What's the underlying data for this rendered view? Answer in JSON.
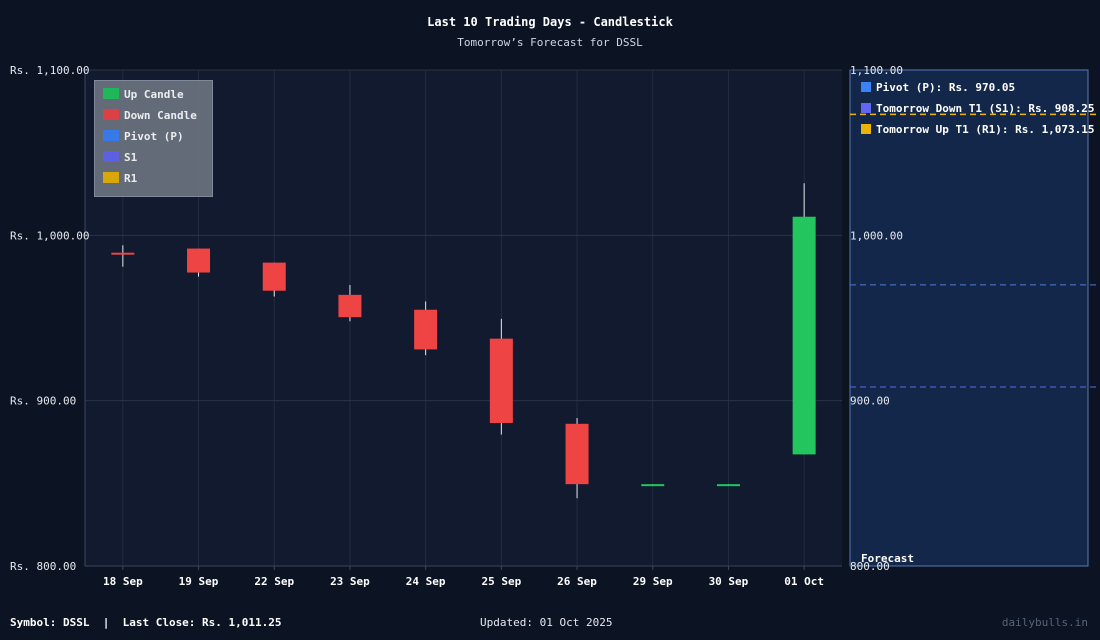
{
  "title": "Last 10 Trading Days - Candlestick",
  "subtitle": "Tomorrow’s Forecast for DSSL",
  "footer": {
    "symbol": "Symbol: DSSL  |  Last Close: Rs. 1,011.25",
    "updated": "Updated: 01 Oct 2025",
    "brand": "dailybulls.in"
  },
  "legend": [
    {
      "label": "Up Candle",
      "color": "#22c55e"
    },
    {
      "label": "Down Candle",
      "color": "#ef4444"
    },
    {
      "label": "Pivot (P)",
      "color": "#3b82f6"
    },
    {
      "label": "S1",
      "color": "#6366f1"
    },
    {
      "label": "R1",
      "color": "#eab308"
    }
  ],
  "forecast_panel": {
    "label": "Forecast",
    "items": [
      {
        "label": "Pivot (P): Rs. 970.05",
        "color": "#3b82f6"
      },
      {
        "label": "Tomorrow Down T1 (S1): Rs. 908.25",
        "color": "#6366f1"
      },
      {
        "label": "Tomorrow Up T1 (R1): Rs. 1,073.15",
        "color": "#eab308"
      }
    ]
  },
  "chart_data": {
    "type": "candlestick",
    "categories": [
      "18 Sep",
      "19 Sep",
      "22 Sep",
      "23 Sep",
      "24 Sep",
      "25 Sep",
      "26 Sep",
      "29 Sep",
      "30 Sep",
      "01 Oct"
    ],
    "candles": [
      {
        "open": 989.5,
        "high": 994,
        "low": 981,
        "close": 988.5
      },
      {
        "open": 992,
        "high": 992,
        "low": 975,
        "close": 977.5
      },
      {
        "open": 983.5,
        "high": 983.5,
        "low": 963,
        "close": 966.5
      },
      {
        "open": 964,
        "high": 970,
        "low": 948,
        "close": 950.5
      },
      {
        "open": 955,
        "high": 960,
        "low": 927.5,
        "close": 931
      },
      {
        "open": 937.5,
        "high": 949.5,
        "low": 879.5,
        "close": 886.5
      },
      {
        "open": 886,
        "high": 889.5,
        "low": 841,
        "close": 849.5
      },
      {
        "open": 849,
        "high": 849.5,
        "low": 848.5,
        "close": 849.5
      },
      {
        "open": 849,
        "high": 849.5,
        "low": 848.5,
        "close": 849.5
      },
      {
        "open": 867.5,
        "high": 1031.5,
        "low": 867.5,
        "close": 1011.25
      }
    ],
    "yticks": [
      "Rs. 800.00",
      "Rs. 900.00",
      "Rs. 1,000.00",
      "Rs. 1,100.00"
    ],
    "yticks_right": [
      "800.00",
      "900.00",
      "1,000.00",
      "1,100.00"
    ],
    "ylim": [
      800,
      1100
    ],
    "pivot": 970.05,
    "s1": 908.25,
    "r1": 1073.15,
    "up_color": "#22c55e",
    "down_color": "#ef4444",
    "grid": true
  }
}
